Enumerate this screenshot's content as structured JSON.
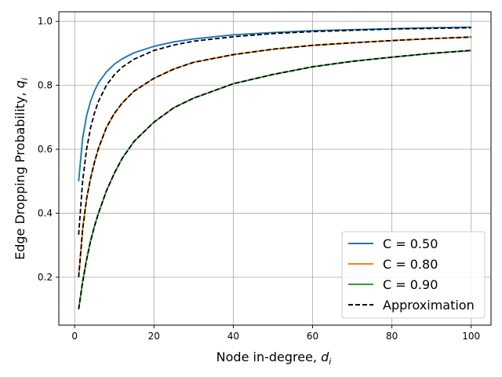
{
  "chart_data": {
    "type": "line",
    "xlabel_main": "Node in-degree, ",
    "xlabel_sym": "d",
    "xlabel_sub": "i",
    "ylabel_main": "Edge Dropping Probability, ",
    "ylabel_sym": "q",
    "ylabel_sub": "i",
    "xlim": [
      -4,
      105
    ],
    "ylim": [
      0.05,
      1.03
    ],
    "xticks": [
      0,
      20,
      40,
      60,
      80,
      100
    ],
    "xtick_labels": [
      "0",
      "20",
      "40",
      "60",
      "80",
      "100"
    ],
    "yticks": [
      0.2,
      0.4,
      0.6,
      0.8,
      1.0
    ],
    "ytick_labels": [
      "0.2",
      "0.4",
      "0.6",
      "0.8",
      "1.0"
    ],
    "grid": true,
    "legend_position": "lower-right",
    "x": [
      1,
      2,
      3,
      4,
      5,
      6,
      8,
      10,
      12,
      15,
      20,
      25,
      30,
      40,
      50,
      60,
      70,
      80,
      90,
      100
    ],
    "series": [
      {
        "name": "C = 0.50",
        "color": "#1f77b4",
        "style": "solid",
        "values": [
          0.5,
          0.634,
          0.705,
          0.75,
          0.783,
          0.808,
          0.842,
          0.866,
          0.883,
          0.902,
          0.922,
          0.936,
          0.945,
          0.958,
          0.965,
          0.971,
          0.974,
          0.977,
          0.98,
          0.982
        ]
      },
      {
        "name": "C = 0.80",
        "color": "#ff7f0e",
        "style": "solid",
        "values": [
          0.2,
          0.349,
          0.445,
          0.509,
          0.56,
          0.603,
          0.668,
          0.712,
          0.745,
          0.782,
          0.822,
          0.851,
          0.872,
          0.896,
          0.913,
          0.925,
          0.933,
          0.94,
          0.946,
          0.951
        ]
      },
      {
        "name": "C = 0.90",
        "color": "#2ca02c",
        "style": "solid",
        "values": [
          0.1,
          0.185,
          0.255,
          0.313,
          0.36,
          0.4,
          0.47,
          0.525,
          0.572,
          0.625,
          0.685,
          0.73,
          0.76,
          0.805,
          0.834,
          0.858,
          0.875,
          0.888,
          0.9,
          0.909
        ]
      },
      {
        "name": "Approximation",
        "color": "#000000",
        "style": "dashed",
        "values": [
          0.333,
          0.5,
          0.6,
          0.667,
          0.714,
          0.75,
          0.8,
          0.833,
          0.857,
          0.882,
          0.909,
          0.926,
          0.938,
          0.952,
          0.962,
          0.968,
          0.972,
          0.976,
          0.978,
          0.98
        ]
      },
      {
        "name": "Approximation",
        "color": "#000000",
        "style": "dashed",
        "values": [
          0.2,
          0.349,
          0.445,
          0.509,
          0.56,
          0.603,
          0.668,
          0.712,
          0.745,
          0.782,
          0.822,
          0.851,
          0.872,
          0.896,
          0.913,
          0.925,
          0.933,
          0.94,
          0.946,
          0.951
        ]
      },
      {
        "name": "Approximation",
        "color": "#000000",
        "style": "dashed",
        "values": [
          0.1,
          0.185,
          0.255,
          0.313,
          0.36,
          0.4,
          0.47,
          0.525,
          0.572,
          0.625,
          0.685,
          0.73,
          0.76,
          0.805,
          0.834,
          0.858,
          0.875,
          0.888,
          0.9,
          0.909
        ]
      }
    ],
    "legend": [
      {
        "label": "C = 0.50",
        "color": "#1f77b4",
        "style": "solid"
      },
      {
        "label": "C = 0.80",
        "color": "#ff7f0e",
        "style": "solid"
      },
      {
        "label": "C = 0.90",
        "color": "#2ca02c",
        "style": "solid"
      },
      {
        "label": "Approximation",
        "color": "#000000",
        "style": "dashed"
      }
    ]
  }
}
